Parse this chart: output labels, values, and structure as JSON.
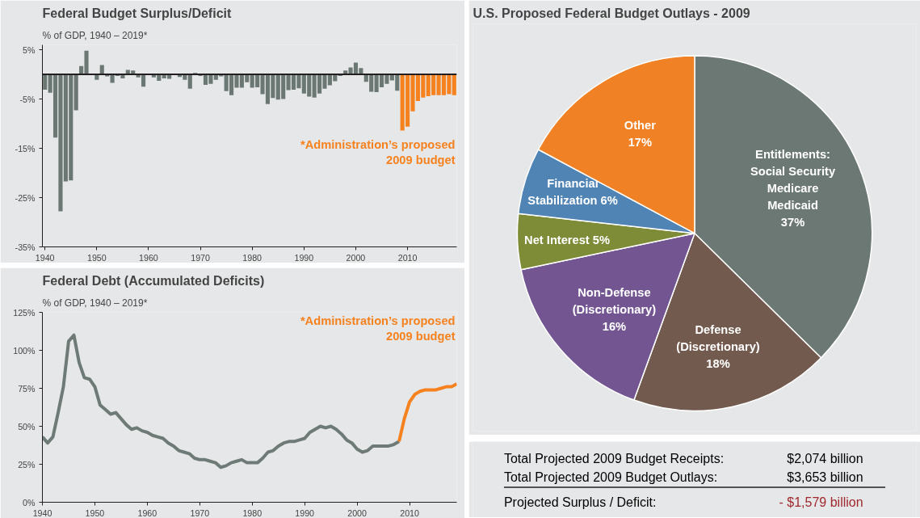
{
  "chart_data": [
    {
      "type": "bar",
      "title": "Federal Budget Surplus/Deficit",
      "subtitle": "% of GDP, 1940 – 2019*",
      "series": [
        {
          "color": "#6b7772",
          "x": [
            1940,
            1941,
            1942,
            1943,
            1944,
            1945,
            1946,
            1947,
            1948,
            1949,
            1950,
            1951,
            1952,
            1953,
            1954,
            1955,
            1956,
            1957,
            1958,
            1959,
            1960,
            1961,
            1962,
            1963,
            1964,
            1965,
            1966,
            1967,
            1968,
            1969,
            1970,
            1971,
            1972,
            1973,
            1974,
            1975,
            1976,
            1977,
            1978,
            1979,
            1980,
            1981,
            1982,
            1983,
            1984,
            1985,
            1986,
            1987,
            1988,
            1989,
            1990,
            1991,
            1992,
            1993,
            1994,
            1995,
            1996,
            1997,
            1998,
            1999,
            2000,
            2001,
            2002,
            2003,
            2004,
            2005,
            2006,
            2007,
            2008
          ],
          "values": [
            -3.1,
            -3.7,
            -12.8,
            -27.8,
            -21.7,
            -21.5,
            -7.3,
            1.7,
            4.8,
            null,
            -1.1,
            1.9,
            -0.4,
            -1.7,
            -0.3,
            -0.8,
            0.9,
            0.8,
            -0.6,
            -2.5,
            null,
            -0.6,
            -1.3,
            -0.8,
            -0.9,
            null,
            -0.5,
            -1.1,
            -2.9,
            0.3,
            -0.3,
            -2.1,
            -1.9,
            -1.1,
            -0.4,
            -3.4,
            -4.2,
            -2.7,
            -2.7,
            -1.6,
            -2.7,
            -2.6,
            -4.0,
            -6.0,
            -4.8,
            -5.1,
            -5.0,
            -3.2,
            -3.1,
            -2.8,
            -3.9,
            -4.5,
            -4.7,
            -3.9,
            -2.9,
            -2.2,
            -1.4,
            -0.3,
            0.8,
            1.4,
            2.4,
            1.3,
            -1.5,
            -3.5,
            -3.6,
            -2.6,
            -1.9,
            -1.2,
            -3.3
          ]
        },
        {
          "color": "#f5821f",
          "x": [
            2009,
            2010,
            2011,
            2012,
            2013,
            2014,
            2015,
            2016,
            2017,
            2018,
            2019
          ],
          "values": [
            -11.4,
            -10.6,
            -7.5,
            -5.4,
            -4.7,
            -4.4,
            -4.2,
            -4.2,
            -4.2,
            -4.0,
            -4.2
          ]
        }
      ],
      "xlim": [
        1939.5,
        2019.5
      ],
      "ylim": [
        -35,
        6
      ],
      "xticks": [
        1940,
        1950,
        1960,
        1970,
        1980,
        1990,
        2000,
        2010
      ],
      "yticks": [
        {
          "value": 5,
          "label": "5%"
        },
        {
          "value": -5,
          "label": "-5%"
        },
        {
          "value": -15,
          "label": "-15%"
        },
        {
          "value": -25,
          "label": "-25%"
        },
        {
          "value": -35,
          "label": "-35%"
        }
      ],
      "ref_lines": [
        {
          "axis": "y",
          "value": 0,
          "color": "#231f20"
        }
      ],
      "annotations": [
        "*Administration’s proposed\n2009 budget"
      ]
    },
    {
      "type": "line",
      "title": "Federal Debt (Accumulated Deficits)",
      "subtitle": "% of GDP, 1940 – 2019*",
      "series": [
        {
          "color": "#6e7a76",
          "x": [
            1940,
            1941,
            1942,
            1943,
            1944,
            1945,
            1946,
            1947,
            1948,
            1949,
            1950,
            1951,
            1952,
            1953,
            1954,
            1955,
            1956,
            1957,
            1958,
            1959,
            1960,
            1961,
            1962,
            1963,
            1964,
            1965,
            1966,
            1967,
            1968,
            1969,
            1970,
            1971,
            1972,
            1973,
            1974,
            1975,
            1976,
            1977,
            1978,
            1979,
            1980,
            1981,
            1982,
            1983,
            1984,
            1985,
            1986,
            1987,
            1988,
            1989,
            1990,
            1991,
            1992,
            1993,
            1994,
            1995,
            1996,
            1997,
            1998,
            1999,
            2000,
            2001,
            2002,
            2003,
            2004,
            2005,
            2006,
            2007,
            2008
          ],
          "values": [
            43,
            39,
            43,
            59,
            76,
            106,
            110,
            92,
            82,
            81,
            76,
            64,
            61,
            58,
            59,
            55,
            51,
            48,
            49,
            47,
            46,
            44,
            43,
            42,
            39,
            37,
            34,
            33,
            32,
            29,
            28,
            28,
            27,
            26,
            23,
            24,
            26,
            27,
            28,
            26,
            26,
            26,
            29,
            33,
            34,
            37,
            39,
            40,
            40,
            41,
            42,
            46,
            48,
            50,
            49,
            50,
            48,
            45,
            41,
            39,
            35,
            33,
            34,
            37,
            37,
            37,
            37,
            38,
            40
          ]
        },
        {
          "color": "#f5821f",
          "x": [
            2008,
            2009,
            2010,
            2011,
            2012,
            2013,
            2014,
            2015,
            2016,
            2017,
            2018,
            2019
          ],
          "values": [
            40,
            55,
            66,
            71,
            73,
            74,
            74,
            74,
            75,
            76,
            76,
            78
          ]
        }
      ],
      "xlim": [
        1940,
        2019
      ],
      "ylim": [
        0,
        125
      ],
      "xticks": [
        1940,
        1950,
        1960,
        1970,
        1980,
        1990,
        2000,
        2010
      ],
      "yticks": [
        {
          "value": 0,
          "label": "0%"
        },
        {
          "value": 25,
          "label": "25%"
        },
        {
          "value": 50,
          "label": "50%"
        },
        {
          "value": 75,
          "label": "75%"
        },
        {
          "value": 100,
          "label": "100%"
        },
        {
          "value": 125,
          "label": "125%"
        }
      ],
      "annotations": [
        "*Administration’s proposed\n2009 budget"
      ],
      "line_style": "solid",
      "marker": "none"
    },
    {
      "type": "pie",
      "title": "U.S. Proposed Federal Budget Outlays - 2009",
      "categories": [
        "Entitlements:\nSocial Security\nMedicare\nMedicaid",
        "Defense\n(Discretionary)",
        "Non-Defense\n(Discretionary)",
        "Net Interest",
        "Financial\nStabilization",
        "Other"
      ],
      "values": [
        37,
        18,
        16,
        5,
        6,
        17
      ],
      "value_labels": [
        "37%",
        "18%",
        "16%",
        "5%",
        "6%",
        "17%"
      ],
      "colors": [
        "#6c7873",
        "#735a4e",
        "#735592",
        "#7f8c37",
        "#4f84b4",
        "#f08124"
      ]
    },
    {
      "type": "other",
      "annotations": [
        "Total Projected 2009 Budget Receipts:",
        "$2,074 billion",
        "Total Projected 2009 Budget Outlays:",
        "$3,653 billion",
        "Projected Surplus / Deficit:",
        "- $1,579 billion"
      ],
      "colors": [
        "#000000",
        "#000000",
        "#000000",
        "#000000",
        "#000000",
        "#a0282e"
      ]
    }
  ]
}
